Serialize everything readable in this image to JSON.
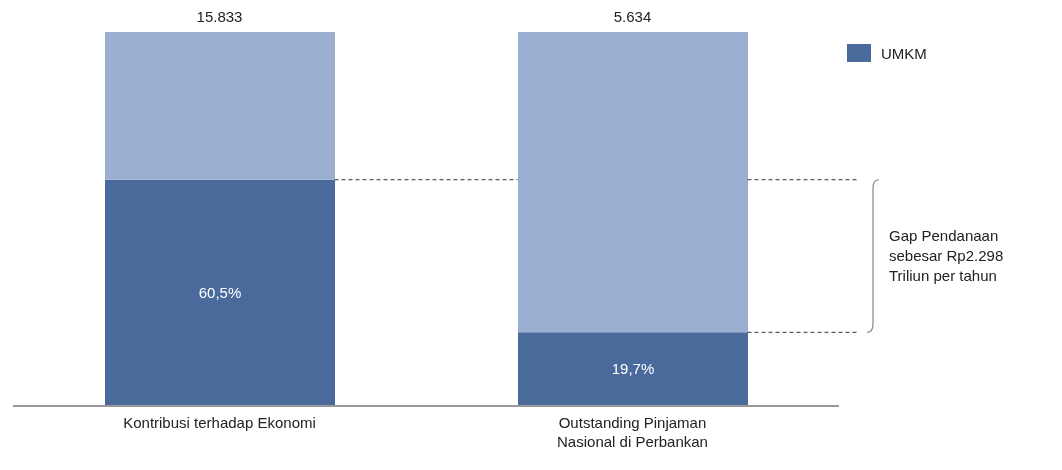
{
  "chart_data": {
    "type": "bar",
    "stacked": true,
    "categories": [
      "Kontribusi terhadap Ekonomi",
      "Outstanding Pinjaman Nasional di Perbankan"
    ],
    "series": [
      {
        "name": "UMKM",
        "color": "#4a6a9c",
        "values": [
          60.5,
          19.7
        ],
        "value_labels": [
          "60,5%",
          "19,7%"
        ]
      },
      {
        "color": "#9aafcf",
        "values": [
          39.5,
          80.3
        ]
      }
    ],
    "ylim": [
      0,
      100
    ],
    "tick_labels": "x",
    "legend": "top right",
    "ref_lines": [
      {
        "axis": "y",
        "value": 60.5,
        "line_style": "dashed"
      },
      {
        "axis": "y",
        "value": 19.7,
        "line_style": "dashed"
      }
    ],
    "annotations": [
      {
        "text": "15.833",
        "x": "Kontribusi terhadap Ekonomi",
        "y": 100
      },
      {
        "text": "5.634",
        "x": "Outstanding Pinjaman Nasional di Perbankan",
        "y": 100
      },
      "Gap Pendanaan sebesar Rp2.298 Triliun per tahun"
    ]
  }
}
